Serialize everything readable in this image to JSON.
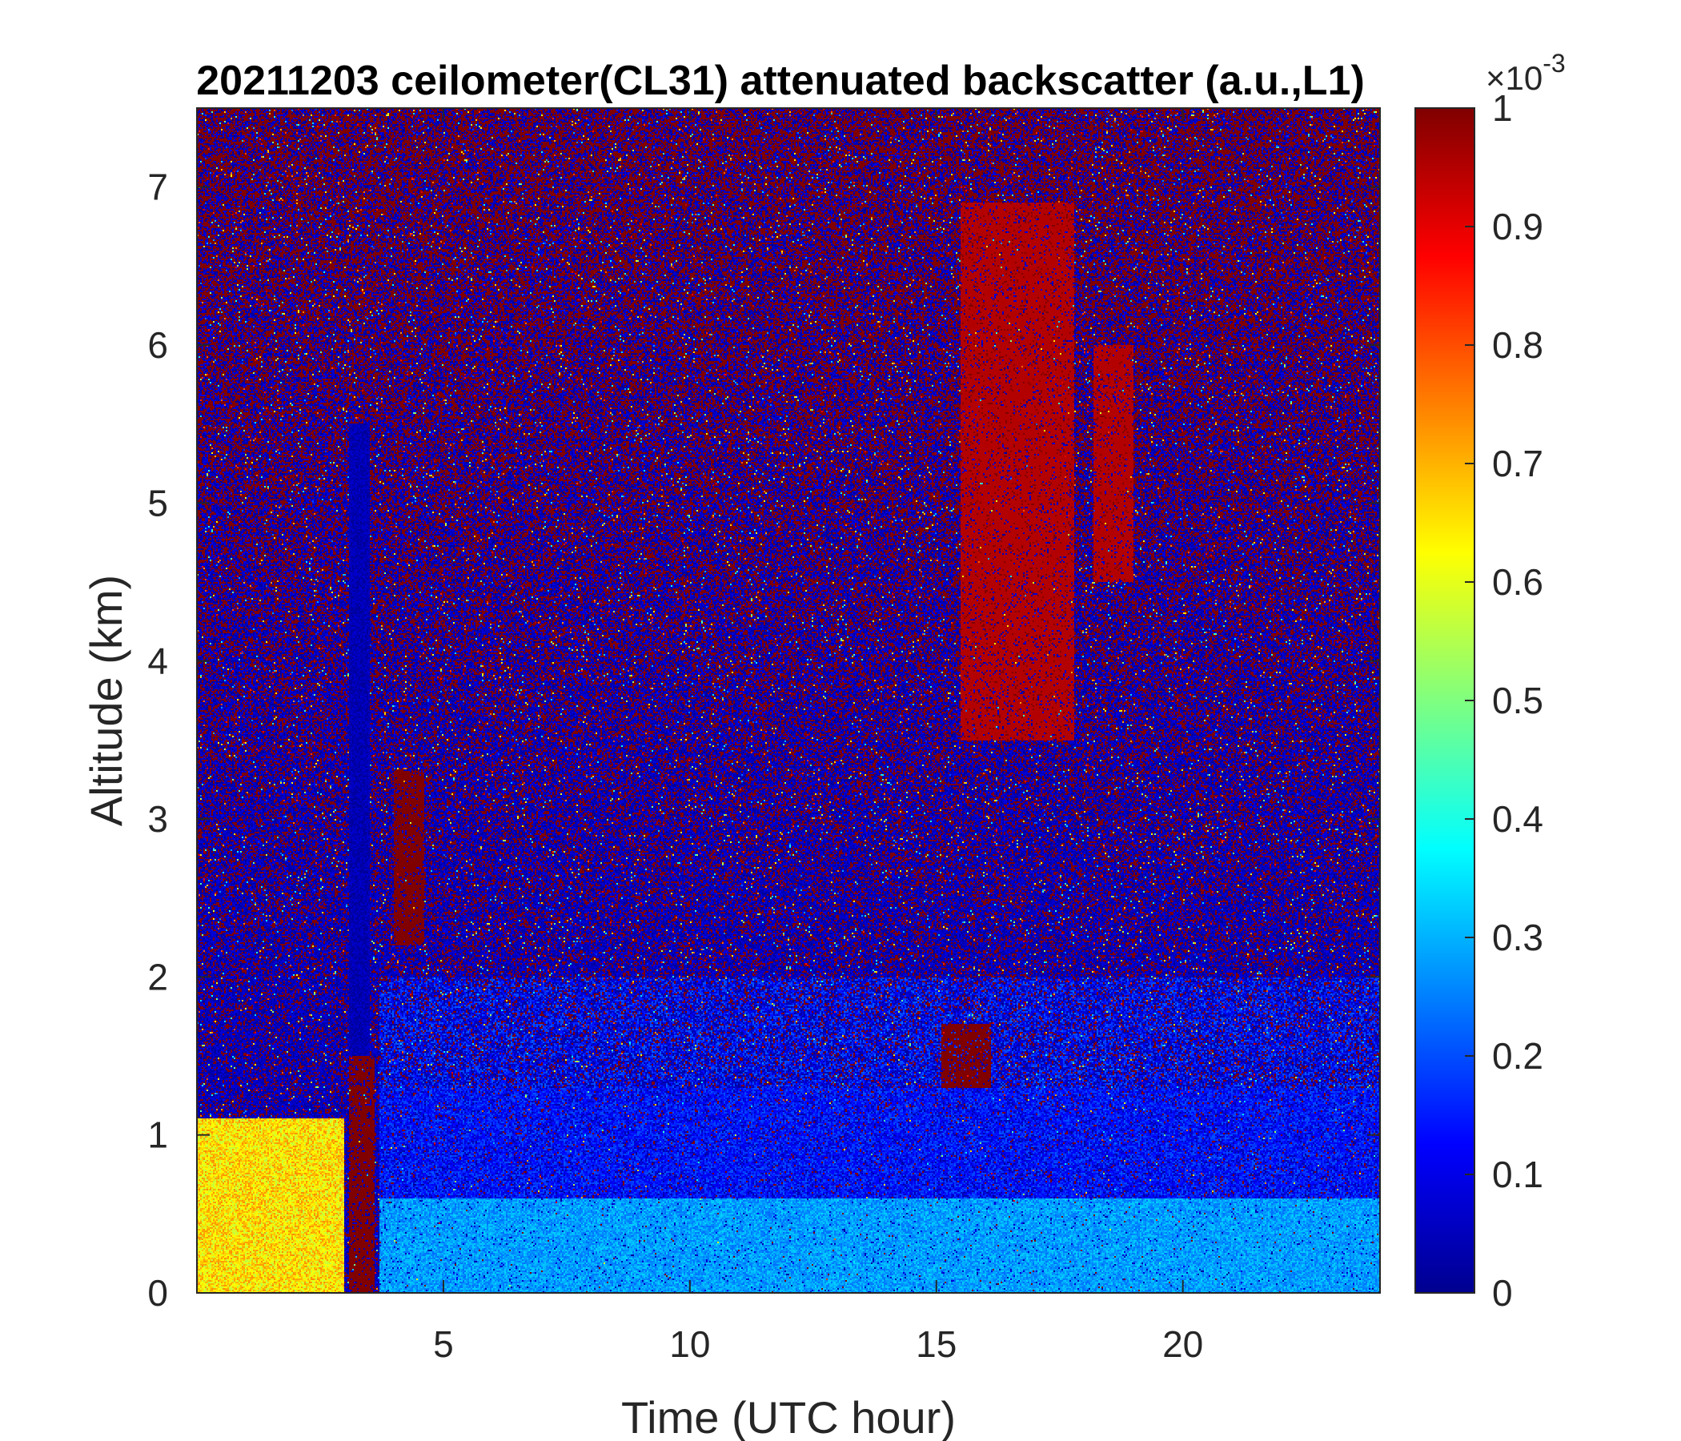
{
  "chart_data": {
    "type": "heatmap",
    "title": "20211203 ceilometer(CL31) attenuated backscatter (a.u.,L1)",
    "xlabel": "Time (UTC hour)",
    "ylabel": "Altitude (km)",
    "xlim": [
      0,
      24
    ],
    "ylim": [
      0,
      7.5
    ],
    "x_ticks": [
      5,
      10,
      15,
      20
    ],
    "y_ticks": [
      0,
      1,
      2,
      3,
      4,
      5,
      6,
      7
    ],
    "colorbar": {
      "colormap": "jet",
      "clim": [
        0,
        0.001
      ],
      "exponent_label": "×10",
      "exponent_power": "-3",
      "ticks": [
        0,
        0.1,
        0.2,
        0.3,
        0.4,
        0.5,
        0.6,
        0.7,
        0.8,
        0.9,
        1
      ],
      "tick_labels": [
        "0",
        "0.1",
        "0.2",
        "0.3",
        "0.4",
        "0.5",
        "0.6",
        "0.7",
        "0.8",
        "0.9",
        "1"
      ]
    },
    "features": [
      {
        "kind": "aerosol layer",
        "x_range": [
          0,
          3
        ],
        "alt_range": [
          0,
          1.1
        ],
        "level": 0.65
      },
      {
        "kind": "surface layer",
        "x_range": [
          3.7,
          24
        ],
        "alt_range": [
          0,
          0.6
        ],
        "level": 0.28
      },
      {
        "kind": "low cloud / precipitation",
        "x_range": [
          3.1,
          3.6
        ],
        "alt_range": [
          0,
          1.5
        ],
        "level": 1.0
      },
      {
        "kind": "signal blocked",
        "x_range": [
          3.1,
          3.5
        ],
        "alt_range": [
          1.5,
          5.5
        ],
        "level": 0.0
      },
      {
        "kind": "cloud",
        "x_range": [
          15.1,
          16.1
        ],
        "alt_range": [
          1.3,
          1.7
        ],
        "level": 1.0
      },
      {
        "kind": "mid-level cloud",
        "x_range": [
          4.0,
          4.6
        ],
        "alt_range": [
          2.2,
          3.3
        ],
        "level": 1.0
      },
      {
        "kind": "upper cloud",
        "x_range": [
          15.5,
          17.8
        ],
        "alt_range": [
          3.5,
          6.9
        ],
        "level": 0.95
      },
      {
        "kind": "upper cloud",
        "x_range": [
          18.2,
          19.0
        ],
        "alt_range": [
          4.5,
          6.0
        ],
        "level": 0.95
      }
    ],
    "grid": false,
    "legend": "none"
  }
}
